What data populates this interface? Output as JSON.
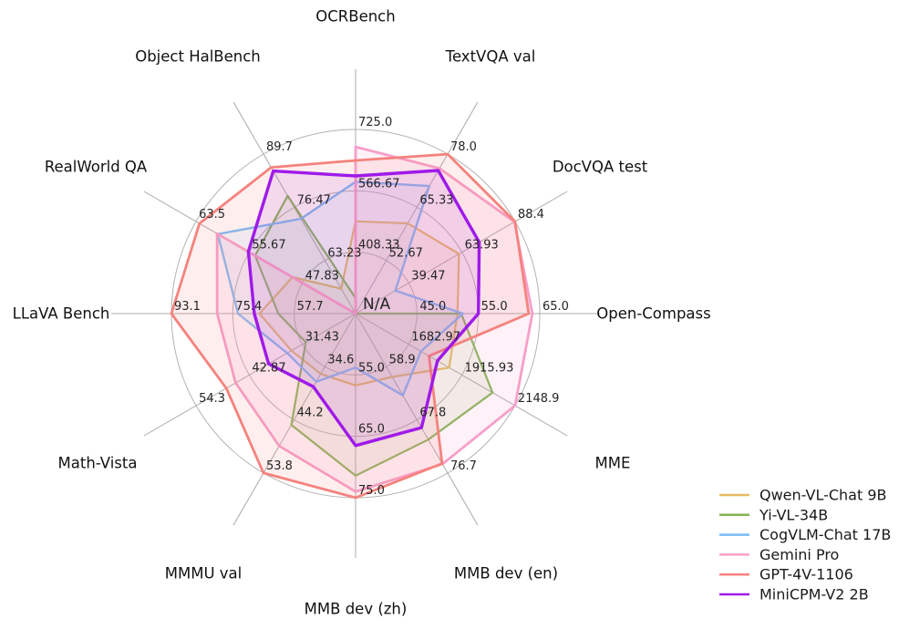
{
  "figure": {
    "background": "#ffffff",
    "center_na_label": "N/A"
  },
  "chart_data": {
    "type": "radar",
    "title": "",
    "grid": true,
    "legend_position": "bottom-right",
    "axes": [
      {
        "label": "OCRBench",
        "tick_labels": [
          "408.33",
          "566.67",
          "725.0"
        ],
        "min": 250,
        "max": 725
      },
      {
        "label": "TextVQA val",
        "tick_labels": [
          "52.67",
          "65.33",
          "78.0"
        ],
        "min": 40,
        "max": 78
      },
      {
        "label": "DocVQA test",
        "tick_labels": [
          "39.47",
          "63.93",
          "88.4"
        ],
        "min": 15,
        "max": 88.4
      },
      {
        "label": "Open-Compass",
        "tick_labels": [
          "45.0",
          "55.0",
          "65.0"
        ],
        "min": 35,
        "max": 65
      },
      {
        "label": "MME",
        "tick_labels": [
          "1682.97",
          "1915.93",
          "2148.9"
        ],
        "min": 1450,
        "max": 2148.9
      },
      {
        "label": "MMB dev (en)",
        "tick_labels": [
          "58.9",
          "67.8",
          "76.7"
        ],
        "min": 50,
        "max": 76.7
      },
      {
        "label": "MMB dev (zh)",
        "tick_labels": [
          "55.0",
          "65.0",
          "75.0"
        ],
        "min": 45,
        "max": 75
      },
      {
        "label": "MMMU val",
        "tick_labels": [
          "34.6",
          "44.2",
          "53.8"
        ],
        "min": 25,
        "max": 53.8
      },
      {
        "label": "Math-Vista",
        "tick_labels": [
          "31.43",
          "42.87",
          "54.3"
        ],
        "min": 20,
        "max": 54.3
      },
      {
        "label": "LLaVA Bench",
        "tick_labels": [
          "57.7",
          "75.4",
          "93.1"
        ],
        "min": 40,
        "max": 93.1
      },
      {
        "label": "RealWorld QA",
        "tick_labels": [
          "47.83",
          "55.67",
          "63.5"
        ],
        "min": 40,
        "max": 63.5
      },
      {
        "label": "Object HalBench",
        "tick_labels": [
          "63.23",
          "76.47",
          "89.7"
        ],
        "min": 50,
        "max": 89.7
      }
    ],
    "series": [
      {
        "name": "Qwen-VL-Chat 9B",
        "color": "#e7bd62",
        "values": [
          488,
          61.5,
          62.6,
          51.6,
          1860.0,
          60.6,
          56.7,
          35.9,
          33.8,
          67.7,
          49.3,
          56.2
        ]
      },
      {
        "name": "Yi-VL-34B",
        "color": "#82b454",
        "values": [
          290,
          null,
          null,
          52.2,
          2050.2,
          71.1,
          71.4,
          45.1,
          30.7,
          62.3,
          54.8,
          79.3
        ]
      },
      {
        "name": "CogVLM-Chat 17B",
        "color": "#78bcf6",
        "values": [
          590,
          70.4,
          33.3,
          52.5,
          1736.6,
          63.7,
          53.8,
          37.3,
          34.7,
          73.9,
          60.3,
          73.6
        ]
      },
      {
        "name": "Gemini Pro",
        "color": "#f79fc9",
        "values": [
          680,
          74.6,
          88.1,
          63.8,
          2148.9,
          75.2,
          74.0,
          48.9,
          45.8,
          79.9,
          60.4,
          null
        ]
      },
      {
        "name": "GPT-4V-1106",
        "color": "#f5827d",
        "values": [
          645,
          78.0,
          88.4,
          63.2,
          1771.5,
          75.1,
          75.0,
          53.8,
          47.8,
          93.1,
          63.0,
          86.4
        ]
      },
      {
        "name": "MiniCPM-V2 2B",
        "color": "#9f1ae8",
        "values": [
          605,
          74.1,
          71.9,
          55.0,
          1808.6,
          69.1,
          66.5,
          38.2,
          38.7,
          69.2,
          55.8,
          85.5
        ]
      }
    ],
    "na_note": "Values plotted at the chart center are N/A for that benchmark"
  }
}
